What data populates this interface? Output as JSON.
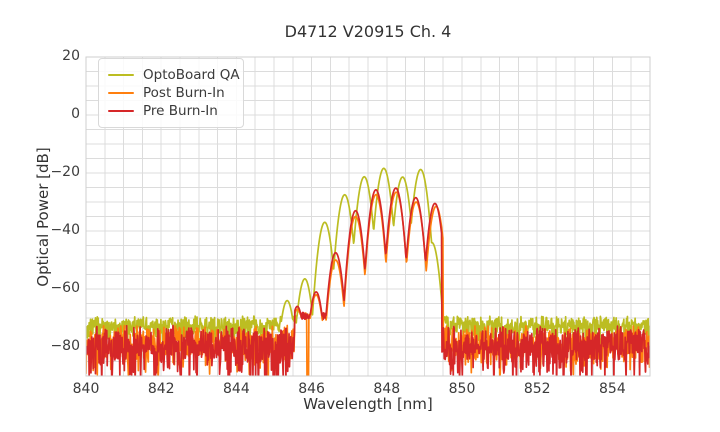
{
  "chart_data": {
    "type": "line",
    "title": "D4712 V20915 Ch. 4",
    "xlabel": "Wavelength [nm]",
    "ylabel": "Optical Power [dB]",
    "xlim": [
      840,
      855
    ],
    "ylim": [
      -90,
      20
    ],
    "xticks": [
      840,
      842,
      844,
      846,
      848,
      850,
      852,
      854
    ],
    "yticks": [
      20,
      0,
      -20,
      -40,
      -60,
      -80
    ],
    "grid": {
      "on": true,
      "x_step_nm": 0.5,
      "y_step_db": 5,
      "color": "#dcdcdc"
    },
    "legend": {
      "position": "upper left"
    },
    "series": [
      {
        "name": "OptoBoard QA",
        "color": "#bcbd22",
        "modes_nm_db": [
          [
            845.35,
            -64
          ],
          [
            845.82,
            -56.5
          ],
          [
            846.35,
            -37
          ],
          [
            846.88,
            -27.5
          ],
          [
            847.4,
            -21.3
          ],
          [
            847.92,
            -18.4
          ],
          [
            848.42,
            -21.4
          ],
          [
            848.9,
            -18.8
          ],
          [
            849.2,
            -44
          ]
        ],
        "signal_range_nm": [
          845.15,
          849.6
        ],
        "noise_floor_db": {
          "mean": -71.5,
          "max": -69,
          "min": -78
        }
      },
      {
        "name": "Post Burn-In",
        "color": "#ff7f0e",
        "modes_nm_db": [
          [
            845.62,
            -67
          ],
          [
            846.12,
            -62
          ],
          [
            846.64,
            -50
          ],
          [
            847.17,
            -35
          ],
          [
            847.71,
            -27.5
          ],
          [
            848.25,
            -26.6
          ],
          [
            848.78,
            -30
          ],
          [
            849.31,
            -31.5
          ]
        ],
        "signal_range_nm": [
          845.55,
          849.5
        ],
        "noise_floor_db": {
          "mean": -77,
          "max": -72,
          "min": -87
        },
        "dropout_nm": 845.9
      },
      {
        "name": "Pre Burn-In",
        "color": "#d62728",
        "modes_nm_db": [
          [
            845.62,
            -66
          ],
          [
            846.12,
            -61
          ],
          [
            846.64,
            -47.5
          ],
          [
            847.17,
            -33
          ],
          [
            847.71,
            -25.8
          ],
          [
            848.24,
            -25.2
          ],
          [
            848.77,
            -28.5
          ],
          [
            849.28,
            -30.5
          ]
        ],
        "signal_range_nm": [
          845.55,
          849.46
        ],
        "noise_floor_db": {
          "mean": -77.5,
          "max": -72,
          "min": -90
        }
      }
    ]
  }
}
